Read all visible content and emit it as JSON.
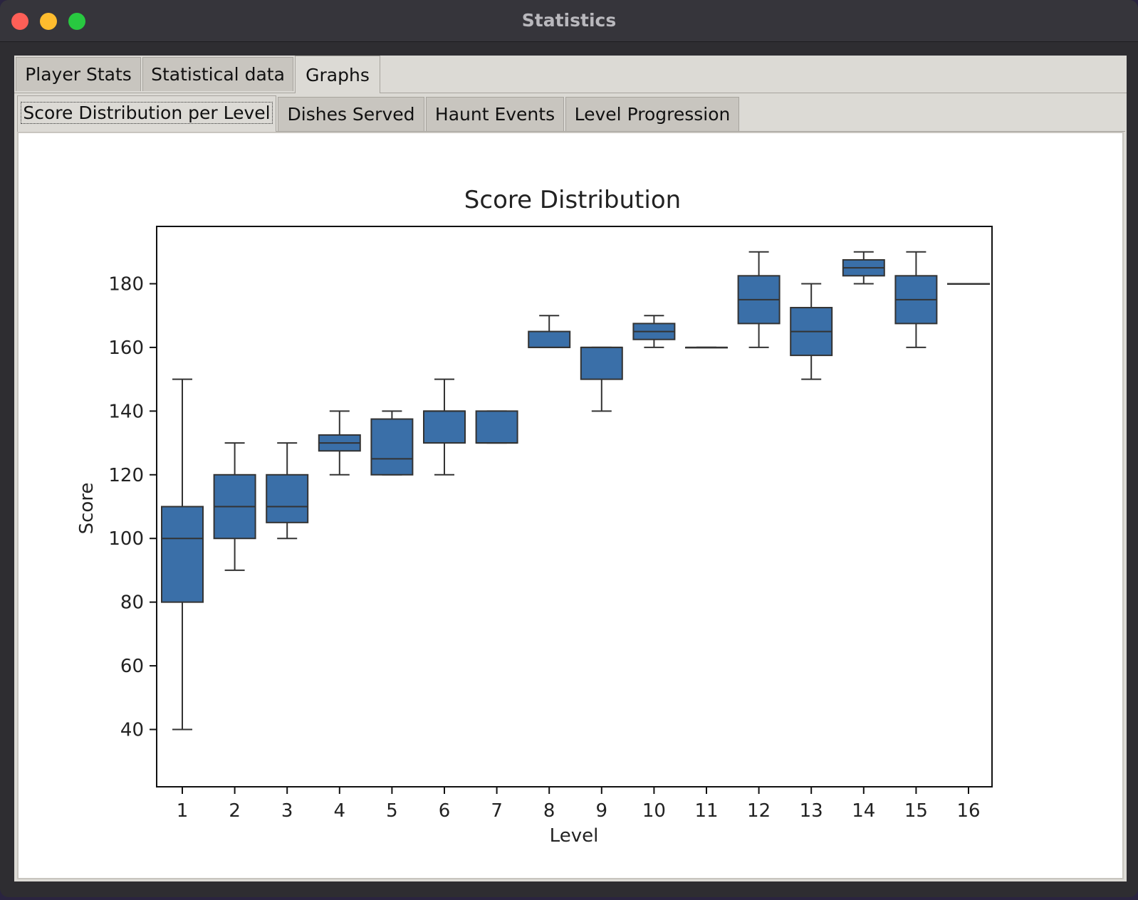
{
  "window": {
    "title": "Statistics"
  },
  "tabs": [
    {
      "label": "Player Stats",
      "active": false
    },
    {
      "label": "Statistical data",
      "active": false
    },
    {
      "label": "Graphs",
      "active": true
    }
  ],
  "subtabs": [
    {
      "label": "Score Distribution per Level",
      "active": true
    },
    {
      "label": "Dishes Served",
      "active": false
    },
    {
      "label": "Haunt Events",
      "active": false
    },
    {
      "label": "Level Progression",
      "active": false
    }
  ],
  "colors": {
    "box_fill": "#3a6fa8",
    "box_edge": "#333333"
  },
  "chart_data": {
    "type": "box",
    "title": "Score Distribution",
    "xlabel": "Level",
    "ylabel": "Score",
    "ylim": [
      22,
      198
    ],
    "yticks": [
      40,
      60,
      80,
      100,
      120,
      140,
      160,
      180
    ],
    "categories": [
      "1",
      "2",
      "3",
      "4",
      "5",
      "6",
      "7",
      "8",
      "9",
      "10",
      "11",
      "12",
      "13",
      "14",
      "15",
      "16"
    ],
    "boxes": [
      {
        "level": "1",
        "min": 40,
        "q1": 80,
        "median": 100,
        "q3": 110,
        "max": 150
      },
      {
        "level": "2",
        "min": 90,
        "q1": 100,
        "median": 110,
        "q3": 120,
        "max": 130
      },
      {
        "level": "3",
        "min": 100,
        "q1": 105,
        "median": 110,
        "q3": 120,
        "max": 130
      },
      {
        "level": "4",
        "min": 120,
        "q1": 127.5,
        "median": 130,
        "q3": 132.5,
        "max": 140
      },
      {
        "level": "5",
        "min": 120,
        "q1": 120,
        "median": 125,
        "q3": 137.5,
        "max": 140
      },
      {
        "level": "6",
        "min": 120,
        "q1": 130,
        "median": 140,
        "q3": 140,
        "max": 150
      },
      {
        "level": "7",
        "min": 130,
        "q1": 130,
        "median": 130,
        "q3": 140,
        "max": 140
      },
      {
        "level": "8",
        "min": 160,
        "q1": 160,
        "median": 160,
        "q3": 165,
        "max": 170
      },
      {
        "level": "9",
        "min": 140,
        "q1": 150,
        "median": 160,
        "q3": 160,
        "max": 160
      },
      {
        "level": "10",
        "min": 160,
        "q1": 162.5,
        "median": 165,
        "q3": 167.5,
        "max": 170
      },
      {
        "level": "11",
        "min": 160,
        "q1": 160,
        "median": 160,
        "q3": 160,
        "max": 160
      },
      {
        "level": "12",
        "min": 160,
        "q1": 167.5,
        "median": 175,
        "q3": 182.5,
        "max": 190
      },
      {
        "level": "13",
        "min": 150,
        "q1": 157.5,
        "median": 165,
        "q3": 172.5,
        "max": 180
      },
      {
        "level": "14",
        "min": 180,
        "q1": 182.5,
        "median": 185,
        "q3": 187.5,
        "max": 190
      },
      {
        "level": "15",
        "min": 160,
        "q1": 167.5,
        "median": 175,
        "q3": 182.5,
        "max": 190
      },
      {
        "level": "16",
        "min": 180,
        "q1": 180,
        "median": 180,
        "q3": 180,
        "max": 180
      }
    ],
    "grid": false
  }
}
